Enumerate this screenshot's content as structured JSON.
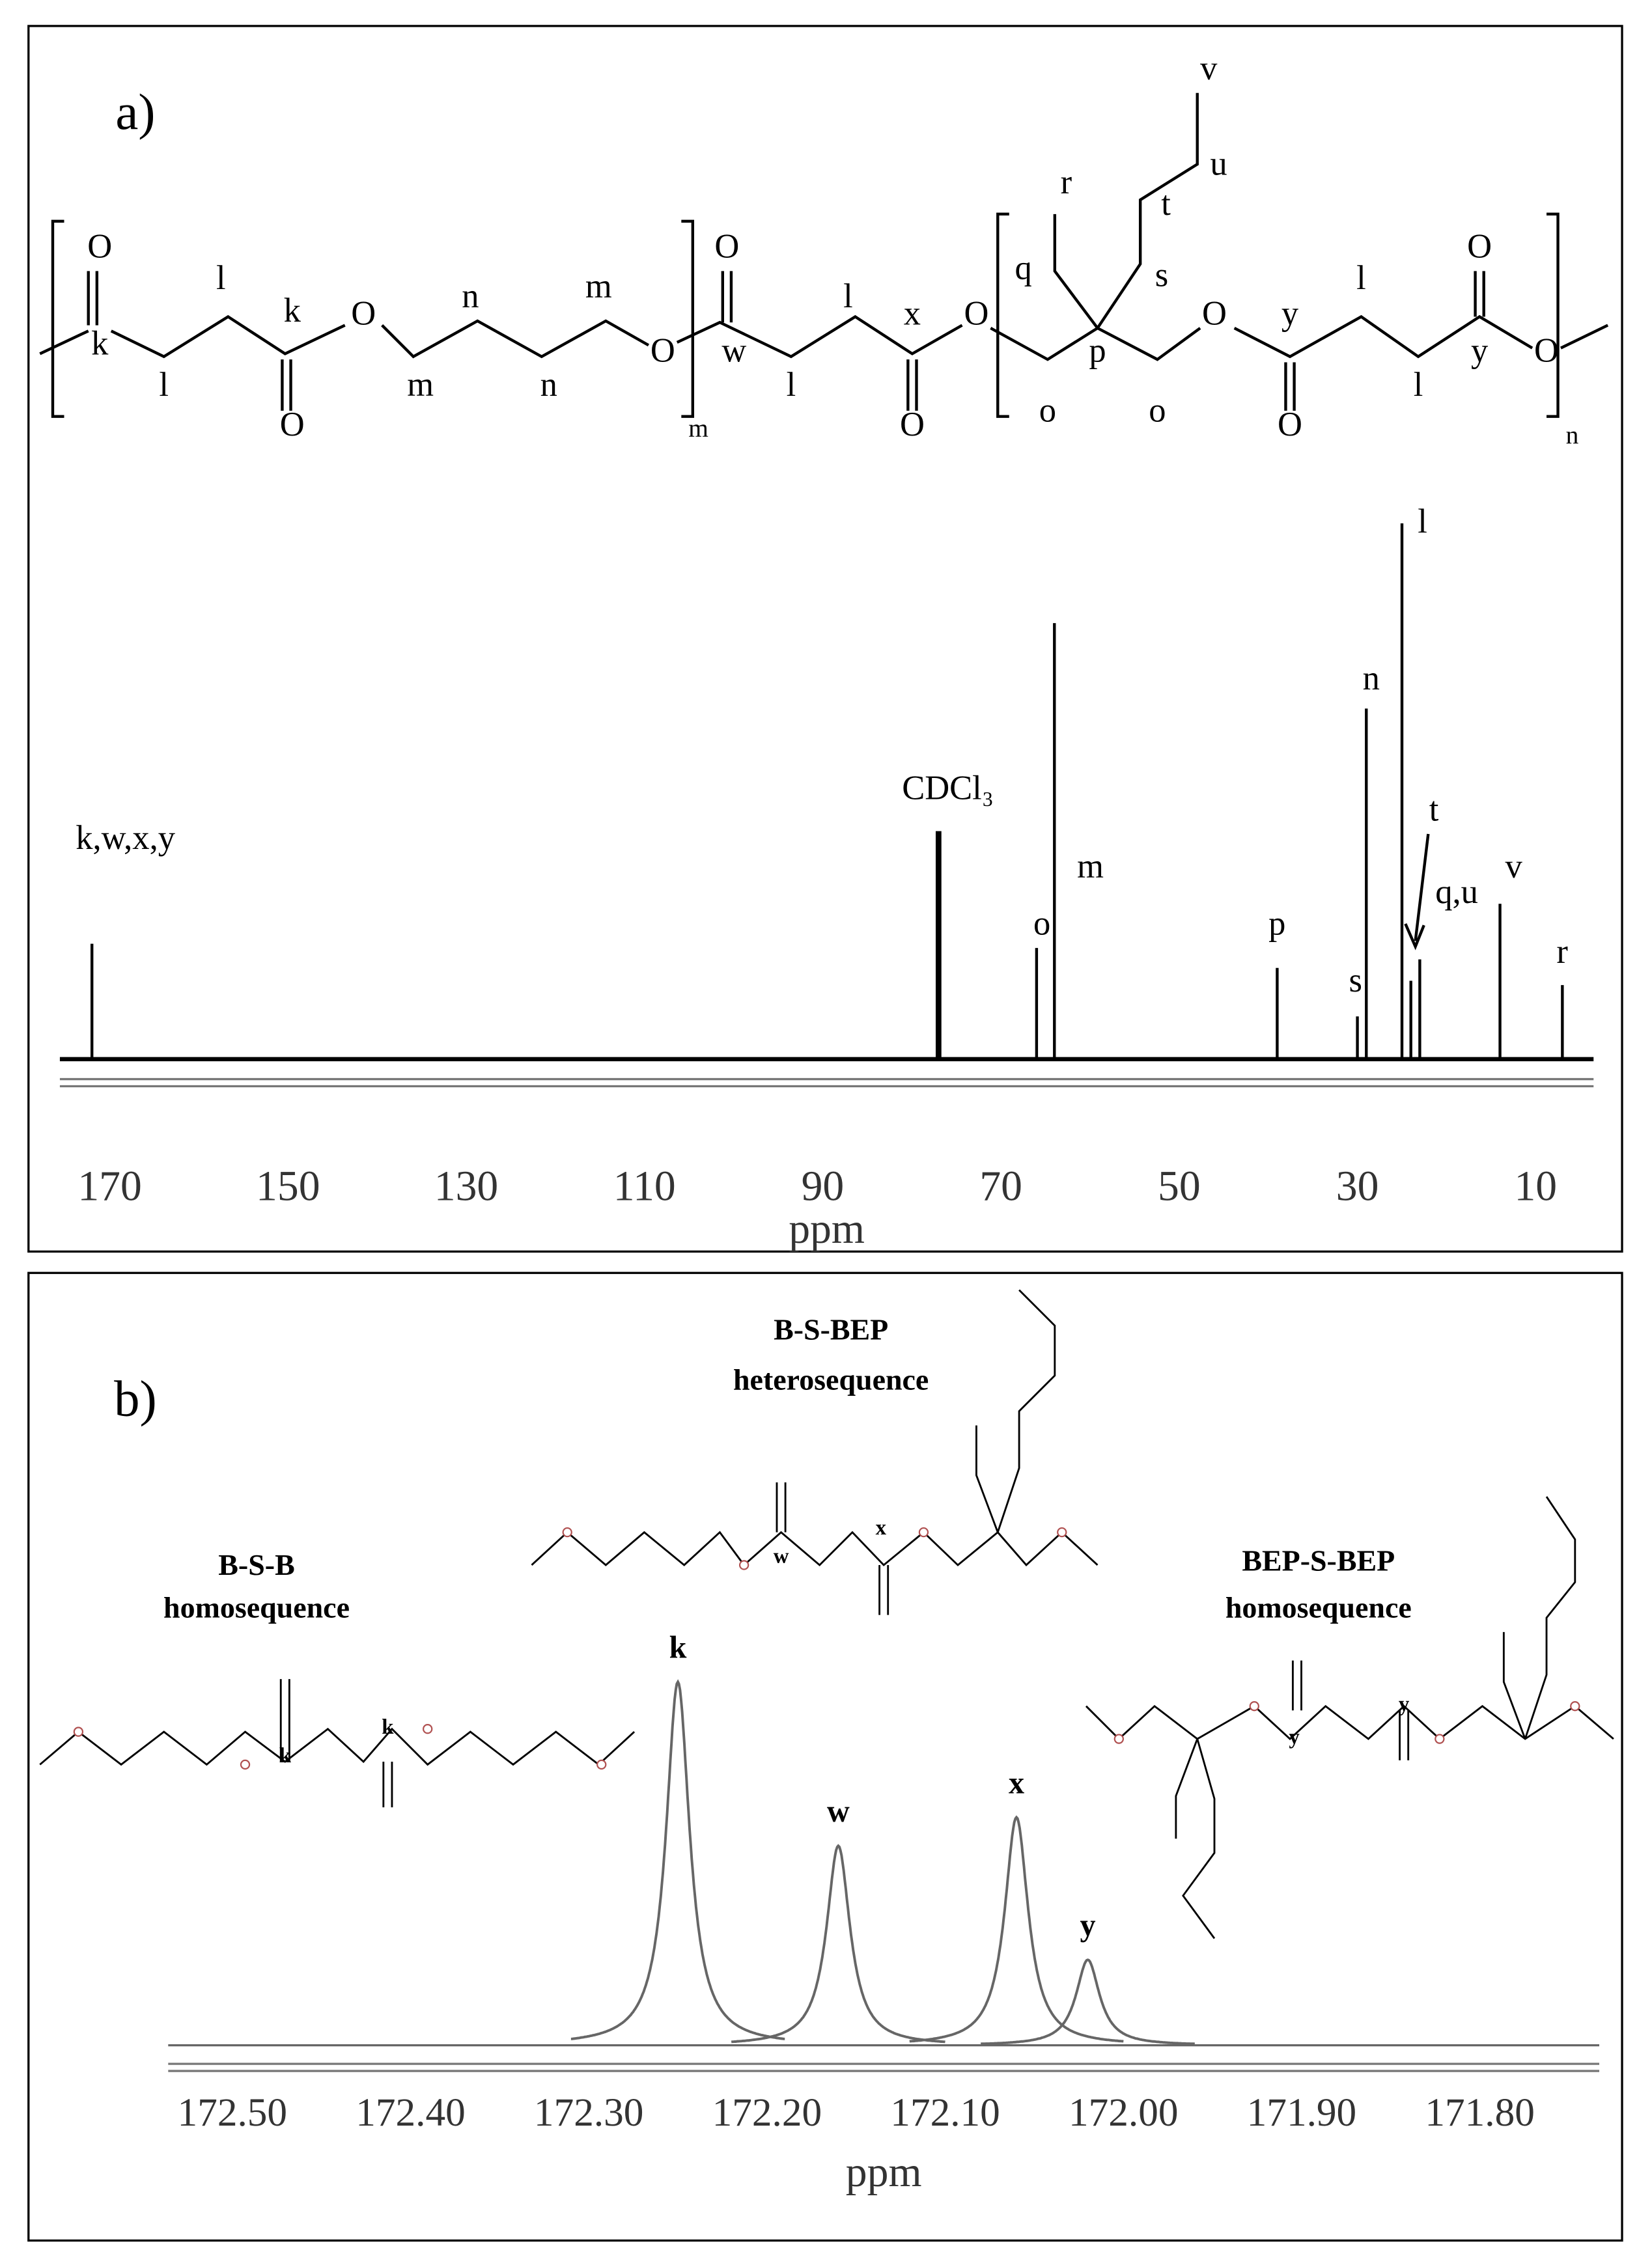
{
  "chart_data": [
    {
      "type": "spectrum",
      "panel_label": "a)",
      "x_label": "ppm",
      "color": "#000000",
      "xlim": [
        175.6,
        3.5
      ],
      "xticks": [
        170,
        150,
        130,
        110,
        90,
        70,
        50,
        30,
        10
      ],
      "ylim": [
        0,
        400
      ],
      "x": [
        172,
        77,
        66,
        64,
        39,
        30,
        29,
        25,
        24,
        23,
        14,
        7
      ],
      "values": [
        81,
        160,
        78,
        306,
        64,
        30,
        246,
        376,
        55,
        70,
        109,
        52
      ],
      "peak_labels": [
        "k,w,x,y",
        "CDCl₃",
        "o",
        "m",
        "p",
        "s",
        "n",
        "l",
        "t",
        "q,u",
        "v",
        "r"
      ]
    },
    {
      "type": "spectrum",
      "panel_label": "b)",
      "x_label": "ppm",
      "color": "#666666",
      "xlim": [
        172.536,
        171.733
      ],
      "xticks": [
        {
          "value": 172.5,
          "label": "172.50"
        },
        {
          "value": 172.4,
          "label": "172.40"
        },
        {
          "value": 172.3,
          "label": "172.30"
        },
        {
          "value": 172.2,
          "label": "172.20"
        },
        {
          "value": 172.1,
          "label": "172.10"
        },
        {
          "value": 172.0,
          "label": "172.00"
        },
        {
          "value": 171.9,
          "label": "171.90"
        },
        {
          "value": 171.8,
          "label": "171.80"
        }
      ],
      "ylim": [
        0,
        300
      ],
      "x": [
        172.25,
        172.16,
        172.06,
        172.02
      ],
      "values": [
        255,
        140,
        160,
        60
      ],
      "peak_labels": [
        "k",
        "w",
        "x",
        "y"
      ],
      "annotations": [
        "B-S-BEP",
        "heterosequence",
        "B-S-B",
        "homosequence",
        "BEP-S-BEP",
        "homosequence"
      ],
      "structure_labels": [
        "w",
        "x",
        "k",
        "k",
        "y",
        "y"
      ]
    }
  ],
  "structure_a": {
    "atoms": [
      "O",
      "k",
      "l",
      "l",
      "k",
      "O",
      "O",
      "m",
      "n",
      "n",
      "m",
      "O",
      "m",
      "O",
      "w",
      "l",
      "l",
      "x",
      "O",
      "O",
      "q",
      "r",
      "s",
      "t",
      "u",
      "v",
      "p",
      "o",
      "o",
      "O",
      "y",
      "O",
      "l",
      "l",
      "y",
      "O",
      "O",
      "n"
    ]
  }
}
